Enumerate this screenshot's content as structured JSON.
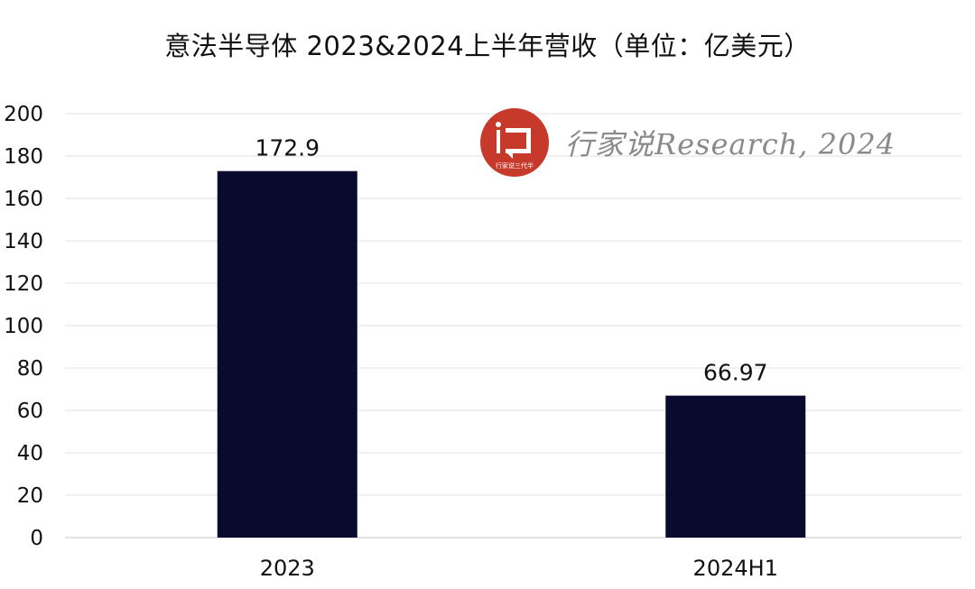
{
  "chart_data": {
    "type": "bar",
    "title": "意法半导体 2023&2024上半年营收（单位：亿美元）",
    "categories": [
      "2023",
      "2024H1"
    ],
    "values": [
      172.9,
      66.97
    ],
    "data_labels": [
      "172.9",
      "66.97"
    ],
    "ylim": [
      0,
      200
    ],
    "yticks": [
      0,
      20,
      40,
      60,
      80,
      100,
      120,
      140,
      160,
      180,
      200
    ],
    "xlabel": "",
    "ylabel": "",
    "grid": true,
    "legend": "none",
    "bar_color": "#0a0a2e",
    "grid_color": "#e6e6e6"
  },
  "watermark": {
    "logo_text": "行家说三代半",
    "text": "行家说Research, 2024",
    "logo_color": "#c73a2b"
  }
}
